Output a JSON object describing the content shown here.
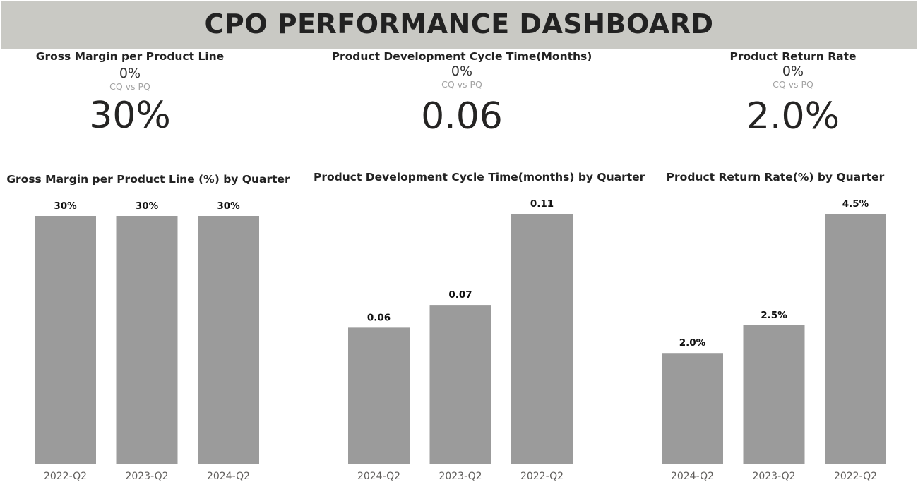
{
  "header": {
    "title": "CPO PERFORMANCE DASHBOARD"
  },
  "kpis": [
    {
      "title": "Gross Margin per Product Line",
      "delta": "0%",
      "sub": "CQ vs PQ",
      "value": "30%"
    },
    {
      "title": "Product Development Cycle Time(Months)",
      "delta": "0%",
      "sub": "CQ vs PQ",
      "value": "0.06"
    },
    {
      "title": "Product Return Rate",
      "delta": "0%",
      "sub": "CQ vs PQ",
      "value": "2.0%"
    }
  ],
  "colors": {
    "header_bg": "#c9c9c4",
    "bar": "#9b9b9b",
    "title_text": "#222222"
  },
  "chart_data": [
    {
      "type": "bar",
      "title": "Gross Margin per Product Line (%) by Quarter",
      "categories": [
        "2022-Q2",
        "2023-Q2",
        "2024-Q2"
      ],
      "values": [
        30,
        30,
        30
      ],
      "data_labels": [
        "30%",
        "30%",
        "30%"
      ],
      "xlabel": "",
      "ylabel": "",
      "ylim": [
        0,
        30
      ],
      "grid": false,
      "legend": "none"
    },
    {
      "type": "bar",
      "title": "Product Development Cycle Time(months) by Quarter",
      "categories": [
        "2024-Q2",
        "2023-Q2",
        "2022-Q2"
      ],
      "values": [
        0.06,
        0.07,
        0.11
      ],
      "data_labels": [
        "0.06",
        "0.07",
        "0.11"
      ],
      "xlabel": "",
      "ylabel": "",
      "ylim": [
        0,
        0.11
      ],
      "grid": false,
      "legend": "none"
    },
    {
      "type": "bar",
      "title": "Product Return Rate(%) by Quarter",
      "categories": [
        "2024-Q2",
        "2023-Q2",
        "2022-Q2"
      ],
      "values": [
        2.0,
        2.5,
        4.5
      ],
      "data_labels": [
        "2.0%",
        "2.5%",
        "4.5%"
      ],
      "xlabel": "",
      "ylabel": "",
      "ylim": [
        0,
        4.5
      ],
      "grid": false,
      "legend": "none"
    }
  ]
}
